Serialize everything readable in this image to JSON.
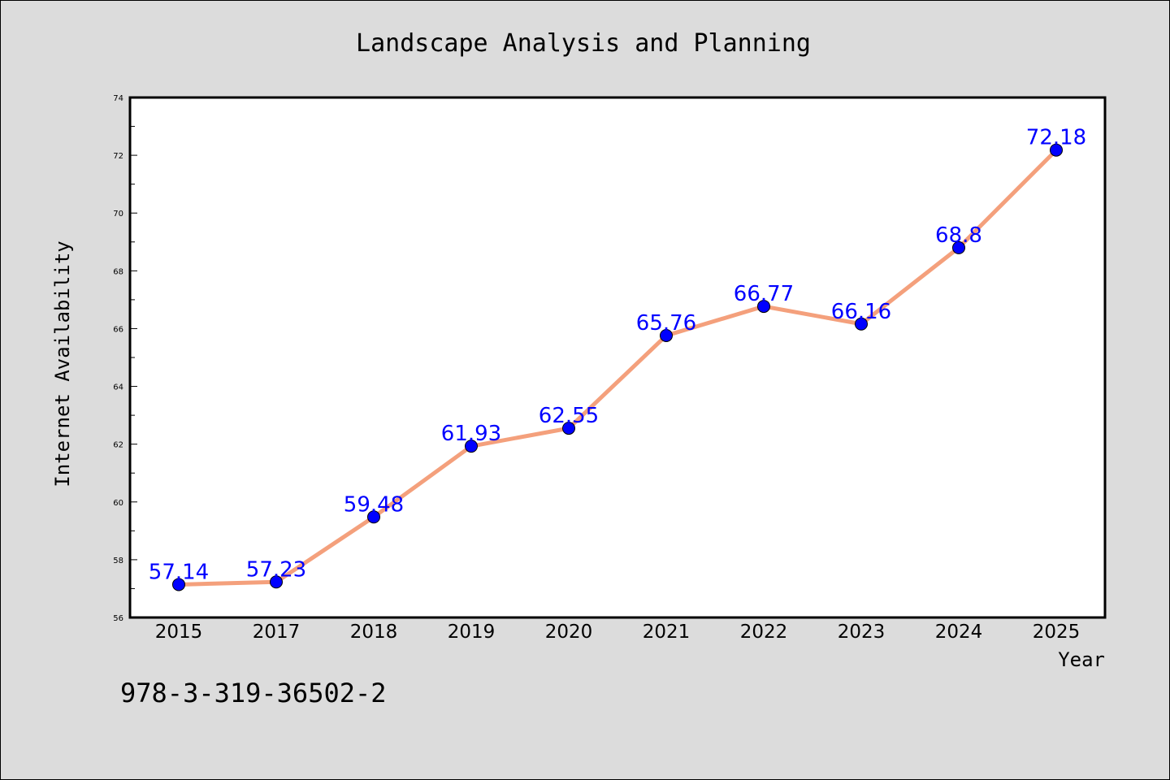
{
  "chart_data": {
    "type": "line",
    "title": "Landscape Analysis and Planning",
    "xlabel": "Year",
    "ylabel": "Internet Availability",
    "categories": [
      "2015",
      "2017",
      "2018",
      "2019",
      "2020",
      "2021",
      "2022",
      "2023",
      "2024",
      "2025"
    ],
    "series": [
      {
        "values": [
          57.14,
          57.23,
          59.48,
          61.93,
          62.55,
          65.76,
          66.77,
          66.16,
          68.8,
          72.18
        ],
        "data_labels": [
          "57.14",
          "57.23",
          "59.48",
          "61.93",
          "62.55",
          "65.76",
          "66.77",
          "66.16",
          "68.8",
          "72.18"
        ],
        "line_color": "#f4a07c",
        "marker_color": "#0000ff"
      }
    ],
    "ylim": [
      56,
      74
    ],
    "yticks": [
      56,
      58,
      60,
      62,
      64,
      66,
      68,
      70,
      72,
      74
    ],
    "grid": false,
    "legend": "none"
  },
  "footer": {
    "code": "978-3-319-36502-2"
  },
  "colors": {
    "background": "#dcdcdc",
    "plot_background": "#ffffff",
    "data_label": "#0000ff"
  }
}
